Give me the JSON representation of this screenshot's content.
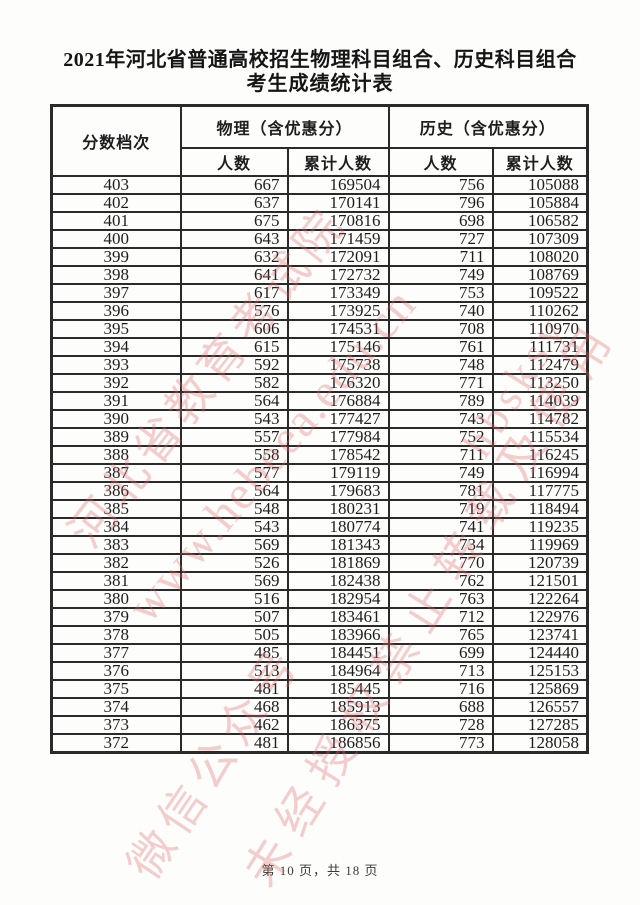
{
  "document": {
    "title_line1": "2021年河北省普通高校招生物理科目组合、历史科目组合",
    "title_line2": "考生成绩统计表",
    "footer": "第 10 页，共 18 页"
  },
  "table": {
    "header": {
      "score_level": "分数档次",
      "physics_group": "物理（含优惠分）",
      "history_group": "历史（含优惠分）",
      "count": "人数",
      "cumulative_count": "累计人数"
    },
    "rows": [
      [
        403,
        667,
        169504,
        756,
        105088
      ],
      [
        402,
        637,
        170141,
        796,
        105884
      ],
      [
        401,
        675,
        170816,
        698,
        106582
      ],
      [
        400,
        643,
        171459,
        727,
        107309
      ],
      [
        399,
        632,
        172091,
        711,
        108020
      ],
      [
        398,
        641,
        172732,
        749,
        108769
      ],
      [
        397,
        617,
        173349,
        753,
        109522
      ],
      [
        396,
        576,
        173925,
        740,
        110262
      ],
      [
        395,
        606,
        174531,
        708,
        110970
      ],
      [
        394,
        615,
        175146,
        761,
        111731
      ],
      [
        393,
        592,
        175738,
        748,
        112479
      ],
      [
        392,
        582,
        176320,
        771,
        113250
      ],
      [
        391,
        564,
        176884,
        789,
        114039
      ],
      [
        390,
        543,
        177427,
        743,
        114782
      ],
      [
        389,
        557,
        177984,
        752,
        115534
      ],
      [
        388,
        558,
        178542,
        711,
        116245
      ],
      [
        387,
        577,
        179119,
        749,
        116994
      ],
      [
        386,
        564,
        179683,
        781,
        117775
      ],
      [
        385,
        548,
        180231,
        719,
        118494
      ],
      [
        384,
        543,
        180774,
        741,
        119235
      ],
      [
        383,
        569,
        181343,
        734,
        119969
      ],
      [
        382,
        526,
        181869,
        770,
        120739
      ],
      [
        381,
        569,
        182438,
        762,
        121501
      ],
      [
        380,
        516,
        182954,
        763,
        122264
      ],
      [
        379,
        507,
        183461,
        712,
        122976
      ],
      [
        378,
        505,
        183966,
        765,
        123741
      ],
      [
        377,
        485,
        184451,
        699,
        124440
      ],
      [
        376,
        513,
        184964,
        713,
        125153
      ],
      [
        375,
        481,
        185445,
        716,
        125869
      ],
      [
        374,
        468,
        185913,
        688,
        126557
      ],
      [
        373,
        462,
        186375,
        728,
        127285
      ],
      [
        372,
        481,
        186856,
        773,
        128058
      ]
    ]
  },
  "watermark": {
    "color": "#dd6a6a",
    "lines": [
      "河北省教育考试院",
      "www.hebeea.edu.cn",
      "hbsksy",
      "微信公众号",
      "未经授权禁止转载及使用"
    ]
  }
}
